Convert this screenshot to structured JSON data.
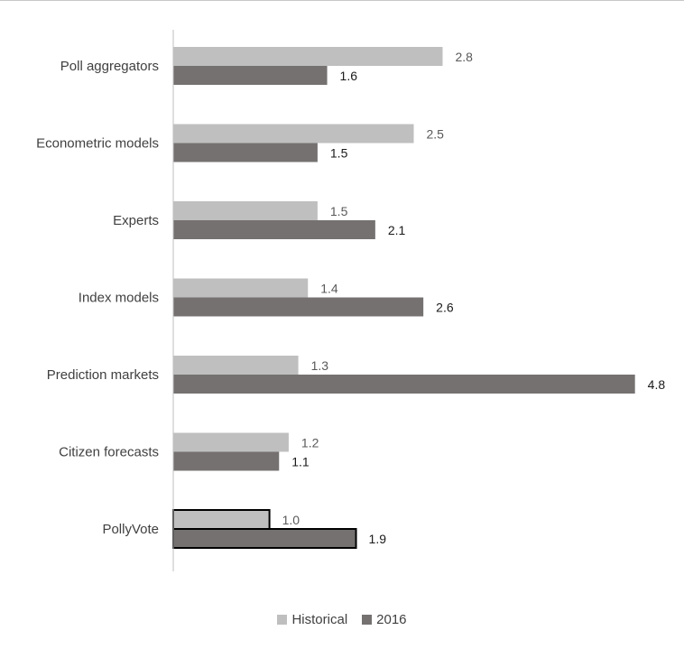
{
  "chart_data": {
    "type": "bar",
    "orientation": "horizontal",
    "categories": [
      "Poll aggregators",
      "Econometric models",
      "Experts",
      "Index models",
      "Prediction markets",
      "Citizen forecasts",
      "PollyVote"
    ],
    "series": [
      {
        "name": "Historical",
        "color": "#bfbfbf",
        "values": [
          2.8,
          2.5,
          1.5,
          1.4,
          1.3,
          1.2,
          1.0
        ]
      },
      {
        "name": "2016",
        "color": "#757171",
        "values": [
          1.6,
          1.5,
          2.1,
          2.6,
          4.8,
          1.1,
          1.9
        ]
      }
    ],
    "data_labels": {
      "Historical": [
        "2.8",
        "2.5",
        "1.5",
        "1.4",
        "1.3",
        "1.2",
        "1.0"
      ],
      "2016": [
        "1.6",
        "1.5",
        "2.1",
        "2.6",
        "4.8",
        "1.1",
        "1.9"
      ]
    },
    "xlim": [
      0,
      5
    ],
    "x_axis_visible": false,
    "grid": false,
    "legend_position": "bottom",
    "highlighted_category": "PollyVote",
    "title": "",
    "xlabel": "",
    "ylabel": ""
  }
}
